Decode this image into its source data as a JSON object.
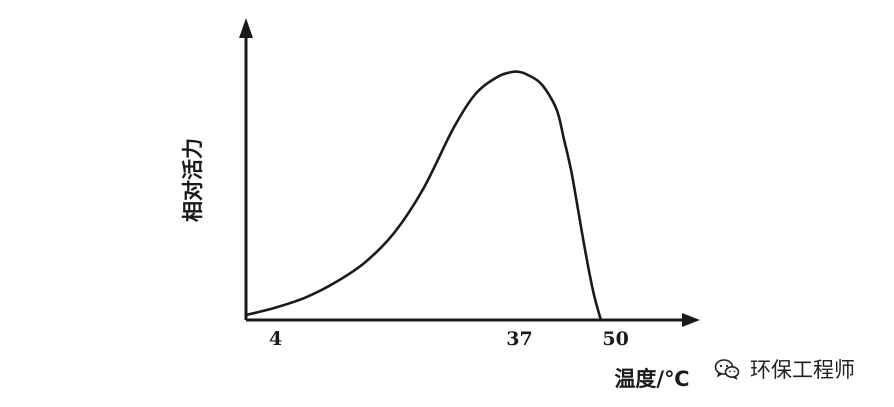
{
  "chart_data": {
    "type": "line",
    "title": "",
    "xlabel": "温度/℃",
    "ylabel": "相对活力",
    "xlim": [
      0,
      56
    ],
    "ylim": [
      0,
      1
    ],
    "x_ticks": [
      4,
      37,
      50
    ],
    "x_tick_labels": [
      "4",
      "37",
      "50"
    ],
    "y_ticks": [],
    "grid": false,
    "series": [
      {
        "x": [
          0,
          4,
          8,
          12,
          16,
          20,
          24,
          28,
          31,
          34,
          36,
          37,
          38,
          40,
          42,
          43,
          44,
          45,
          46,
          47,
          48
        ],
        "values": [
          0.02,
          0.05,
          0.09,
          0.15,
          0.23,
          0.35,
          0.53,
          0.77,
          0.91,
          0.98,
          1.0,
          1.0,
          0.99,
          0.95,
          0.85,
          0.73,
          0.6,
          0.43,
          0.26,
          0.11,
          0.0
        ]
      }
    ]
  },
  "watermark": {
    "text": "环保工程师",
    "icon": "wechat-icon"
  }
}
